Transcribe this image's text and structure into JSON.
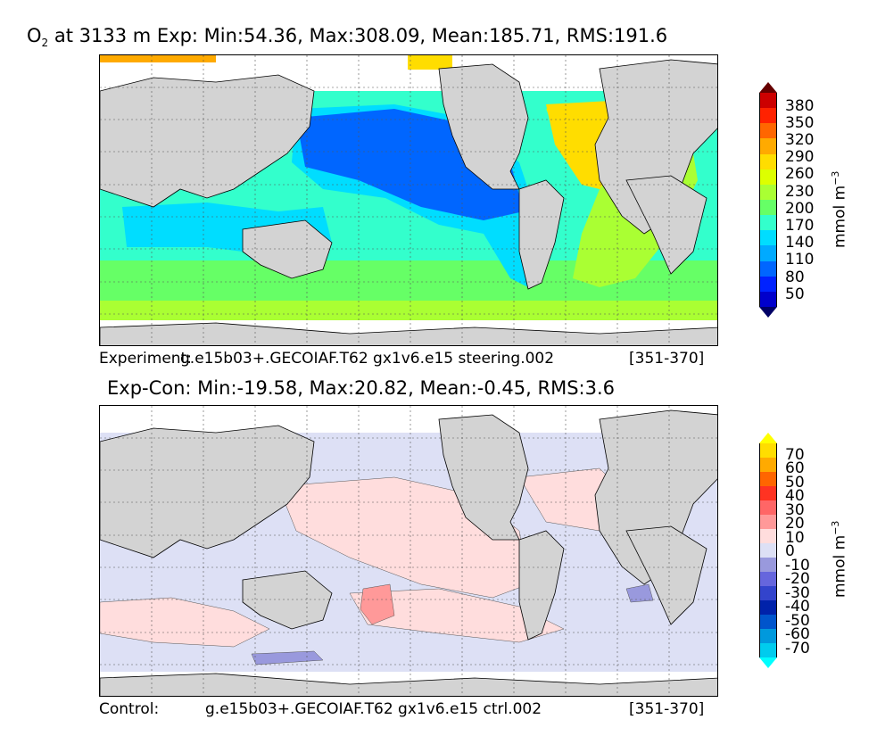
{
  "top_panel": {
    "title_prefix": "O",
    "title_sub": "2",
    "title_rest": " at 3133 m Exp: Min:54.36, Max:308.09, Mean:185.71, RMS:191.6",
    "label_left": "Experiment:",
    "label_center": "g.e15b03+.GECOIAF.T62 gx1v6.e15 steering.002",
    "label_right": "[351-370]",
    "unit_main": "mmol m",
    "unit_exp": "−3",
    "colorbar": {
      "colors": [
        "#000066",
        "#0000cc",
        "#0022ff",
        "#0066ff",
        "#00aaff",
        "#00ddff",
        "#33ffcc",
        "#66ff66",
        "#aaff33",
        "#ddff00",
        "#ffdd00",
        "#ffaa00",
        "#ff6600",
        "#ff2200",
        "#cc0000",
        "#660000"
      ],
      "ticks": [
        "380",
        "350",
        "320",
        "290",
        "260",
        "230",
        "200",
        "170",
        "140",
        "110",
        "80",
        "50"
      ]
    }
  },
  "bottom_panel": {
    "title": "Exp-Con: Min:-19.58, Max:20.82, Mean:-0.45, RMS:3.6",
    "label_left": "Control:",
    "label_center": "g.e15b03+.GECOIAF.T62 gx1v6.e15 ctrl.002",
    "label_right": "[351-370]",
    "unit_main": "mmol m",
    "unit_exp": "−3",
    "colorbar": {
      "colors": [
        "#00ffff",
        "#00ccee",
        "#0099dd",
        "#0055cc",
        "#0022aa",
        "#3344cc",
        "#6666dd",
        "#9999dd",
        "#dde0f5",
        "#ffdddd",
        "#ff9999",
        "#ff6666",
        "#ff3322",
        "#ff6600",
        "#ffaa00",
        "#ffdd00",
        "#ffff00"
      ],
      "ticks": [
        "70",
        "60",
        "50",
        "40",
        "30",
        "20",
        "10",
        "0",
        "-10",
        "-20",
        "-30",
        "-40",
        "-50",
        "-60",
        "-70"
      ]
    }
  }
}
